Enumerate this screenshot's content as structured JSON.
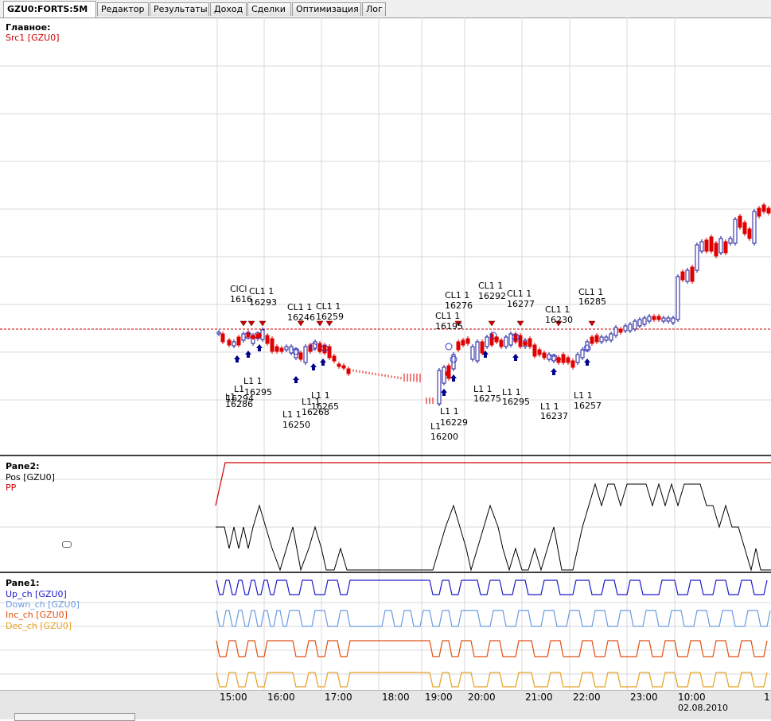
{
  "tabs": [
    {
      "label": "GZU0:FORTS:5M",
      "active": true
    },
    {
      "label": "Редактор"
    },
    {
      "label": "Результаты"
    },
    {
      "label": "Доход"
    },
    {
      "label": "Сделки"
    },
    {
      "label": "Оптимизация"
    },
    {
      "label": "Лог"
    }
  ],
  "main": {
    "title": "Главное:",
    "legend": [
      {
        "label": "Src1 [GZU0]",
        "color": "#cc0000"
      }
    ],
    "annotations": [
      {
        "text": "ClCl",
        "line2": "1616"
      },
      {
        "text": "CL1 1",
        "line2": "16293"
      },
      {
        "text": "CL1 1",
        "line2": "16246"
      },
      {
        "text": "CL1 1",
        "line2": "16259"
      },
      {
        "text": "L1 1",
        "line2": "16295"
      },
      {
        "text": "L1",
        "line2": "16294"
      },
      {
        "text": "L1",
        "line2": "16286"
      },
      {
        "text": "L1 1",
        "line2": "16265"
      },
      {
        "text": "L1 1",
        "line2": "16268"
      },
      {
        "text": "L1 1",
        "line2": "16250"
      },
      {
        "text": "CL1 1",
        "line2": "16276"
      },
      {
        "text": "CL1 1",
        "line2": "16292"
      },
      {
        "text": "CL1 1",
        "line2": "16277"
      },
      {
        "text": "CL1 1",
        "line2": "16195"
      },
      {
        "text": "CL1 1",
        "line2": "16230"
      },
      {
        "text": "CL1 1",
        "line2": "16285"
      },
      {
        "text": "L1 1",
        "line2": "16229"
      },
      {
        "text": "L1",
        "line2": "16200"
      },
      {
        "text": "L1 1",
        "line2": "16275"
      },
      {
        "text": "L1 1",
        "line2": "16295"
      },
      {
        "text": "L1 1",
        "line2": "16237"
      },
      {
        "text": "L1 1",
        "line2": "16257"
      }
    ]
  },
  "pane2": {
    "title": "Pane2:",
    "legend": [
      {
        "label": "Pos [GZU0]",
        "color": "#000000"
      },
      {
        "label": "PP",
        "color": "#cc0000"
      }
    ]
  },
  "pane1": {
    "title": "Pane1:",
    "legend": [
      {
        "label": "Up_ch [GZU0]",
        "color": "#1a1acc"
      },
      {
        "label": "Down_ch [GZU0]",
        "color": "#6a9be0"
      },
      {
        "label": "Inc_ch [GZU0]",
        "color": "#e05010"
      },
      {
        "label": "Dec_ch [GZU0]",
        "color": "#e8a020"
      }
    ]
  },
  "xaxis": {
    "ticks": [
      "15:00",
      "16:00",
      "17:00",
      "18:00",
      "19:00",
      "20:00",
      "21:00",
      "22:00",
      "23:00",
      "10:00",
      "1"
    ],
    "date": "02.08.2010"
  },
  "colors": {
    "grid": "#d9d9d9",
    "up": "#1a1a99",
    "down": "#e00000",
    "ref": "#cc0000"
  }
}
